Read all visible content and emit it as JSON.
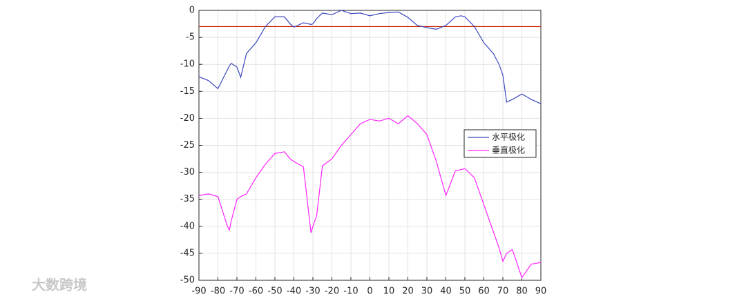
{
  "chart_data": {
    "type": "line",
    "x": [
      -90,
      -85,
      -80,
      -75,
      -74,
      -73,
      -70,
      -68,
      -65,
      -60,
      -55,
      -50,
      -45,
      -42,
      -40,
      -35,
      -31,
      -30,
      -28,
      -25,
      -20,
      -15,
      -10,
      -5,
      0,
      5,
      10,
      15,
      20,
      25,
      30,
      35,
      40,
      45,
      48,
      50,
      55,
      60,
      65,
      68,
      70,
      72,
      75,
      80,
      85,
      90
    ],
    "series": [
      {
        "name": "水平极化",
        "color": "#3a46c0",
        "values": [
          -12.3,
          -13,
          -14.5,
          -11,
          -10.3,
          -9.8,
          -10.5,
          -12.4,
          -8,
          -6,
          -3,
          -1.2,
          -1.2,
          -2.5,
          -3.1,
          -2.3,
          -2.6,
          -2.5,
          -1.5,
          -0.5,
          -0.8,
          0,
          -0.6,
          -0.5,
          -1,
          -0.6,
          -0.4,
          -0.3,
          -1.3,
          -2.8,
          -3.2,
          -3.5,
          -2.8,
          -1.2,
          -1,
          -1.2,
          -3,
          -6,
          -8,
          -10,
          -12,
          -17,
          -16.5,
          -15.5,
          -16.5,
          -17.3
        ]
      },
      {
        "name": "垂直极化",
        "color": "#ff22ff",
        "values": [
          -34.3,
          -34,
          -34.5,
          -40,
          -40.7,
          -39,
          -35,
          -34.5,
          -34,
          -31,
          -28.5,
          -26.5,
          -26.2,
          -27.5,
          -28,
          -29,
          -41.2,
          -40,
          -38,
          -28.8,
          -27.5,
          -25,
          -23,
          -21,
          -20.2,
          -20.5,
          -20,
          -21,
          -19.5,
          -21,
          -23,
          -28,
          -34.3,
          -29.7,
          -29.5,
          -29.3,
          -31,
          -36,
          -41,
          -44,
          -46.5,
          -45,
          -44.3,
          -49.5,
          -47,
          -46.7
        ]
      }
    ],
    "reference_line": {
      "value": -3,
      "color": "#cc2200"
    },
    "xlim": [
      -90,
      90
    ],
    "xticks": [
      -90,
      -80,
      -70,
      -60,
      -50,
      -40,
      -30,
      -20,
      -10,
      0,
      10,
      20,
      30,
      40,
      50,
      60,
      70,
      80,
      90
    ],
    "ylim": [
      -50,
      0
    ],
    "yticks": [
      0,
      -5,
      -10,
      -15,
      -20,
      -25,
      -30,
      -35,
      -40,
      -45,
      -50
    ],
    "grid": true,
    "legend": "east"
  },
  "watermark": "大数跨境"
}
